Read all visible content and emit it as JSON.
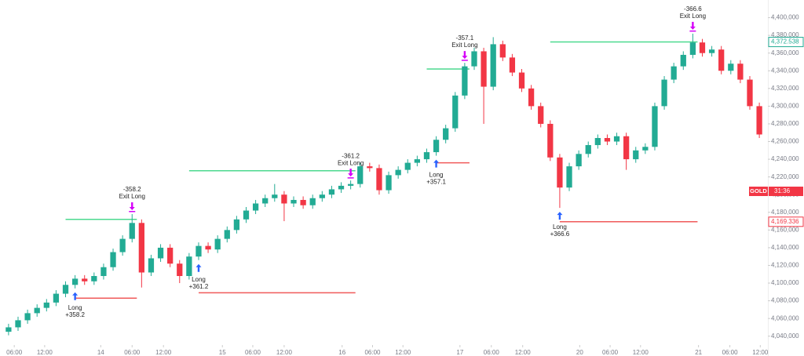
{
  "chart_data": {
    "type": "candlestick",
    "symbol": "GOLD",
    "countdown": "31:36",
    "up_color": "#22ab94",
    "down_color": "#f23645",
    "grid": false,
    "xlim": [
      -0.9,
      79.9
    ],
    "ylim": [
      4030,
      4420
    ],
    "open": [
      4045,
      4050,
      4058,
      4066,
      4072,
      4078,
      4088,
      4098,
      4105,
      4102,
      4108,
      4118,
      4135,
      4150,
      4168,
      4112,
      4128,
      4140,
      4122,
      4108,
      4130,
      4142,
      4138,
      4150,
      4160,
      4172,
      4182,
      4190,
      4196,
      4200,
      4190,
      4194,
      4188,
      4196,
      4200,
      4206,
      4210,
      4212,
      4232,
      4230,
      4205,
      4222,
      4228,
      4236,
      4240,
      4248,
      4262,
      4275,
      4312,
      4345,
      4362,
      4322,
      4370,
      4355,
      4338,
      4320,
      4300,
      4280,
      4242,
      4208,
      4232,
      4246,
      4256,
      4264,
      4260,
      4266,
      4240,
      4250,
      4254,
      4300,
      4330,
      4345,
      4358,
      4372,
      4360,
      4364,
      4340,
      4348,
      4330,
      4300
    ],
    "high": [
      4054,
      4062,
      4070,
      4076,
      4082,
      4092,
      4102,
      4109,
      4109,
      4112,
      4122,
      4139,
      4154,
      4178,
      4172,
      4132,
      4144,
      4144,
      4126,
      4134,
      4146,
      4146,
      4154,
      4164,
      4176,
      4186,
      4194,
      4200,
      4212,
      4204,
      4198,
      4198,
      4200,
      4204,
      4210,
      4214,
      4216,
      4236,
      4236,
      4234,
      4226,
      4232,
      4240,
      4244,
      4252,
      4266,
      4279,
      4316,
      4349,
      4366,
      4366,
      4378,
      4374,
      4359,
      4342,
      4324,
      4304,
      4284,
      4246,
      4236,
      4250,
      4260,
      4268,
      4268,
      4270,
      4270,
      4254,
      4258,
      4304,
      4334,
      4349,
      4362,
      4382,
      4376,
      4368,
      4368,
      4352,
      4352,
      4334,
      4304
    ],
    "low": [
      4041,
      4046,
      4054,
      4062,
      4068,
      4074,
      4084,
      4094,
      4098,
      4098,
      4104,
      4114,
      4131,
      4146,
      4095,
      4108,
      4124,
      4118,
      4100,
      4104,
      4126,
      4134,
      4134,
      4146,
      4156,
      4168,
      4178,
      4186,
      4192,
      4170,
      4186,
      4184,
      4184,
      4192,
      4196,
      4202,
      4206,
      4208,
      4226,
      4200,
      4201,
      4218,
      4224,
      4232,
      4236,
      4244,
      4258,
      4271,
      4308,
      4341,
      4280,
      4318,
      4351,
      4334,
      4316,
      4296,
      4276,
      4238,
      4185,
      4204,
      4228,
      4242,
      4252,
      4256,
      4256,
      4228,
      4236,
      4246,
      4250,
      4296,
      4326,
      4341,
      4354,
      4356,
      4356,
      4336,
      4336,
      4326,
      4296,
      4264
    ],
    "close": [
      4050,
      4058,
      4066,
      4072,
      4078,
      4088,
      4098,
      4105,
      4102,
      4108,
      4118,
      4135,
      4150,
      4168,
      4112,
      4128,
      4140,
      4122,
      4108,
      4130,
      4142,
      4138,
      4150,
      4160,
      4172,
      4182,
      4190,
      4196,
      4200,
      4190,
      4194,
      4188,
      4196,
      4200,
      4206,
      4210,
      4212,
      4232,
      4230,
      4205,
      4222,
      4228,
      4236,
      4240,
      4248,
      4262,
      4275,
      4312,
      4345,
      4362,
      4322,
      4370,
      4355,
      4338,
      4320,
      4300,
      4280,
      4242,
      4208,
      4232,
      4246,
      4256,
      4264,
      4260,
      4266,
      4240,
      4250,
      4254,
      4300,
      4330,
      4345,
      4358,
      4372,
      4360,
      4364,
      4340,
      4348,
      4330,
      4300,
      4268
    ],
    "xticks": [
      {
        "value": 0.6,
        "label": "06:00"
      },
      {
        "value": 3.8,
        "label": "12:00"
      },
      {
        "value": 9.7,
        "label": "14"
      },
      {
        "value": 13,
        "label": "06:00"
      },
      {
        "value": 16.3,
        "label": "12:00"
      },
      {
        "value": 22.5,
        "label": "15"
      },
      {
        "value": 25.7,
        "label": "06:00"
      },
      {
        "value": 29,
        "label": "12:00"
      },
      {
        "value": 35.1,
        "label": "16"
      },
      {
        "value": 38.3,
        "label": "06:00"
      },
      {
        "value": 41.5,
        "label": "12:00"
      },
      {
        "value": 47.5,
        "label": "17"
      },
      {
        "value": 50.8,
        "label": "06:00"
      },
      {
        "value": 54.1,
        "label": "12:00"
      },
      {
        "value": 60.1,
        "label": "20"
      },
      {
        "value": 63.3,
        "label": "06:00"
      },
      {
        "value": 66.5,
        "label": "12:00"
      },
      {
        "value": 72.6,
        "label": "21"
      },
      {
        "value": 75.9,
        "label": "06:00"
      },
      {
        "value": 79.1,
        "label": "12:00"
      }
    ],
    "yticks": [
      {
        "value": 4040,
        "label": "4,040,000"
      },
      {
        "value": 4060,
        "label": "4,060,000"
      },
      {
        "value": 4080,
        "label": "4,080,000"
      },
      {
        "value": 4100,
        "label": "4,100,000"
      },
      {
        "value": 4120,
        "label": "4,120,000"
      },
      {
        "value": 4140,
        "label": "4,140,000"
      },
      {
        "value": 4160,
        "label": "4,160,000"
      },
      {
        "value": 4180,
        "label": "4,180,000"
      },
      {
        "value": 4200,
        "label": "4,200,000"
      },
      {
        "value": 4220,
        "label": "4,220,000"
      },
      {
        "value": 4240,
        "label": "4,240,000"
      },
      {
        "value": 4260,
        "label": "4,260,000"
      },
      {
        "value": 4280,
        "label": "4,280,000"
      },
      {
        "value": 4300,
        "label": "4,300,000"
      },
      {
        "value": 4320,
        "label": "4,320,000"
      },
      {
        "value": 4340,
        "label": "4,340,000"
      },
      {
        "value": 4360,
        "label": "4,360,000"
      },
      {
        "value": 4380,
        "label": "4,380,000"
      },
      {
        "value": 4400,
        "label": "4,400,000"
      }
    ],
    "trades": [
      {
        "entry_index": 7,
        "entry_label": "Long",
        "entry_pnl": "+358.2",
        "exit_index": 13,
        "exit_label": "Exit Long",
        "exit_pnl": "-358.2",
        "take_profit": 4172,
        "stop_loss": 4083
      },
      {
        "entry_index": 20,
        "entry_label": "Long",
        "entry_pnl": "+361.2",
        "exit_index": 36,
        "exit_label": "Exit Long",
        "exit_pnl": "-361.2",
        "take_profit": 4227,
        "stop_loss": 4089
      },
      {
        "entry_index": 45,
        "entry_label": "Long",
        "entry_pnl": "+357.1",
        "exit_index": 48,
        "exit_label": "Exit Long",
        "exit_pnl": "-357.1",
        "take_profit": 4342,
        "stop_loss": 4236
      },
      {
        "entry_index": 58,
        "entry_label": "Long",
        "entry_pnl": "+366.6",
        "exit_index": 72,
        "exit_label": "Exit Long",
        "exit_pnl": "-366.6",
        "take_profit": 4372.538,
        "stop_loss": 4169.336
      }
    ],
    "price_labels": [
      {
        "value": 4372.538,
        "label": "4,372.538",
        "color": "#22ab94"
      },
      {
        "value": 4169.336,
        "label": "4,169.336",
        "color": "#f23645"
      }
    ]
  }
}
